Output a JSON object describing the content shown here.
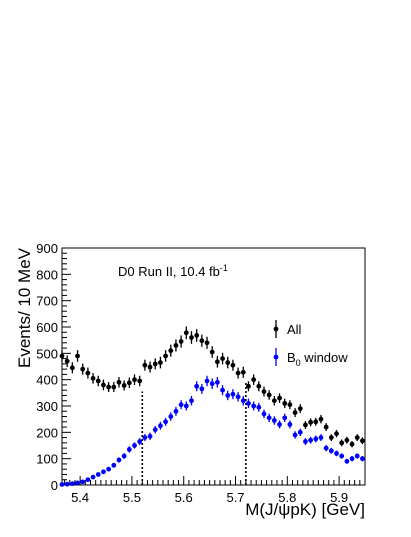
{
  "chart_data": {
    "type": "scatter",
    "annotation": {
      "main": "D0 Run II, 10.4 fb",
      "sup": "-1"
    },
    "xlabel": "M(J/ψpK) [GeV]",
    "ylabel": "Events/ 10 MeV",
    "xlim": [
      5.365,
      5.95
    ],
    "ylim": [
      0,
      900
    ],
    "x_ticks": [
      5.4,
      5.5,
      5.6,
      5.7,
      5.8,
      5.9
    ],
    "x_tick_labels": [
      "5.4",
      "5.5",
      "5.6",
      "5.7",
      "5.8",
      "5.9"
    ],
    "y_ticks": [
      0,
      100,
      200,
      300,
      400,
      500,
      600,
      700,
      800,
      900
    ],
    "y_tick_labels": [
      "0",
      "100",
      "200",
      "300",
      "400",
      "500",
      "600",
      "700",
      "800",
      "900"
    ],
    "grid": false,
    "legend_position": "right",
    "colors": {
      "all": "#000000",
      "b0": "#0000ff",
      "axis": "#000000",
      "lines": "#000000"
    },
    "vertical_lines": [
      5.52,
      5.72
    ],
    "x": [
      5.365,
      5.375,
      5.385,
      5.395,
      5.405,
      5.415,
      5.425,
      5.435,
      5.445,
      5.455,
      5.465,
      5.475,
      5.485,
      5.495,
      5.505,
      5.515,
      5.525,
      5.535,
      5.545,
      5.555,
      5.565,
      5.575,
      5.585,
      5.595,
      5.605,
      5.615,
      5.625,
      5.635,
      5.645,
      5.655,
      5.665,
      5.675,
      5.685,
      5.695,
      5.705,
      5.715,
      5.725,
      5.735,
      5.745,
      5.755,
      5.765,
      5.775,
      5.785,
      5.795,
      5.805,
      5.815,
      5.825,
      5.835,
      5.845,
      5.855,
      5.865,
      5.875,
      5.885,
      5.895,
      5.905,
      5.915,
      5.925,
      5.935,
      5.945
    ],
    "series": [
      {
        "name": "All",
        "y": [
          490,
          470,
          445,
          490,
          440,
          425,
          405,
          395,
          380,
          372,
          372,
          390,
          378,
          388,
          400,
          395,
          455,
          448,
          460,
          465,
          490,
          510,
          530,
          545,
          578,
          560,
          568,
          548,
          540,
          505,
          468,
          480,
          465,
          455,
          425,
          428,
          375,
          400,
          375,
          355,
          342,
          320,
          330,
          310,
          305,
          275,
          290,
          228,
          238,
          240,
          250,
          220,
          180,
          195,
          160,
          170,
          155,
          180,
          168
        ],
        "err": [
          22,
          22,
          21,
          22,
          21,
          21,
          20,
          20,
          20,
          19,
          19,
          20,
          19,
          20,
          20,
          20,
          21,
          21,
          21,
          22,
          22,
          23,
          23,
          23,
          24,
          24,
          24,
          23,
          23,
          22,
          22,
          22,
          22,
          21,
          21,
          21,
          19,
          20,
          19,
          19,
          18,
          18,
          18,
          18,
          17,
          17,
          17,
          15,
          15,
          15,
          16,
          15,
          13,
          14,
          13,
          13,
          12,
          13,
          13
        ]
      },
      {
        "name": "B",
        "name_sub": "0",
        "name_suffix": " window",
        "y": [
          2,
          3,
          5,
          8,
          12,
          20,
          30,
          40,
          50,
          60,
          75,
          95,
          110,
          135,
          150,
          165,
          180,
          185,
          210,
          225,
          240,
          260,
          280,
          305,
          300,
          320,
          375,
          365,
          395,
          385,
          390,
          360,
          340,
          345,
          335,
          320,
          310,
          300,
          295,
          270,
          255,
          245,
          230,
          255,
          230,
          190,
          200,
          165,
          170,
          175,
          180,
          140,
          130,
          120,
          110,
          90,
          100,
          110,
          100
        ],
        "err": [
          2,
          2,
          3,
          3,
          4,
          5,
          6,
          7,
          7,
          8,
          9,
          10,
          11,
          12,
          12,
          13,
          13,
          14,
          14,
          15,
          15,
          16,
          17,
          17,
          17,
          18,
          19,
          19,
          20,
          20,
          20,
          19,
          18,
          19,
          18,
          18,
          18,
          17,
          17,
          16,
          16,
          16,
          15,
          16,
          15,
          14,
          14,
          13,
          13,
          13,
          13,
          12,
          11,
          11,
          10,
          9,
          10,
          10,
          10
        ]
      }
    ]
  }
}
